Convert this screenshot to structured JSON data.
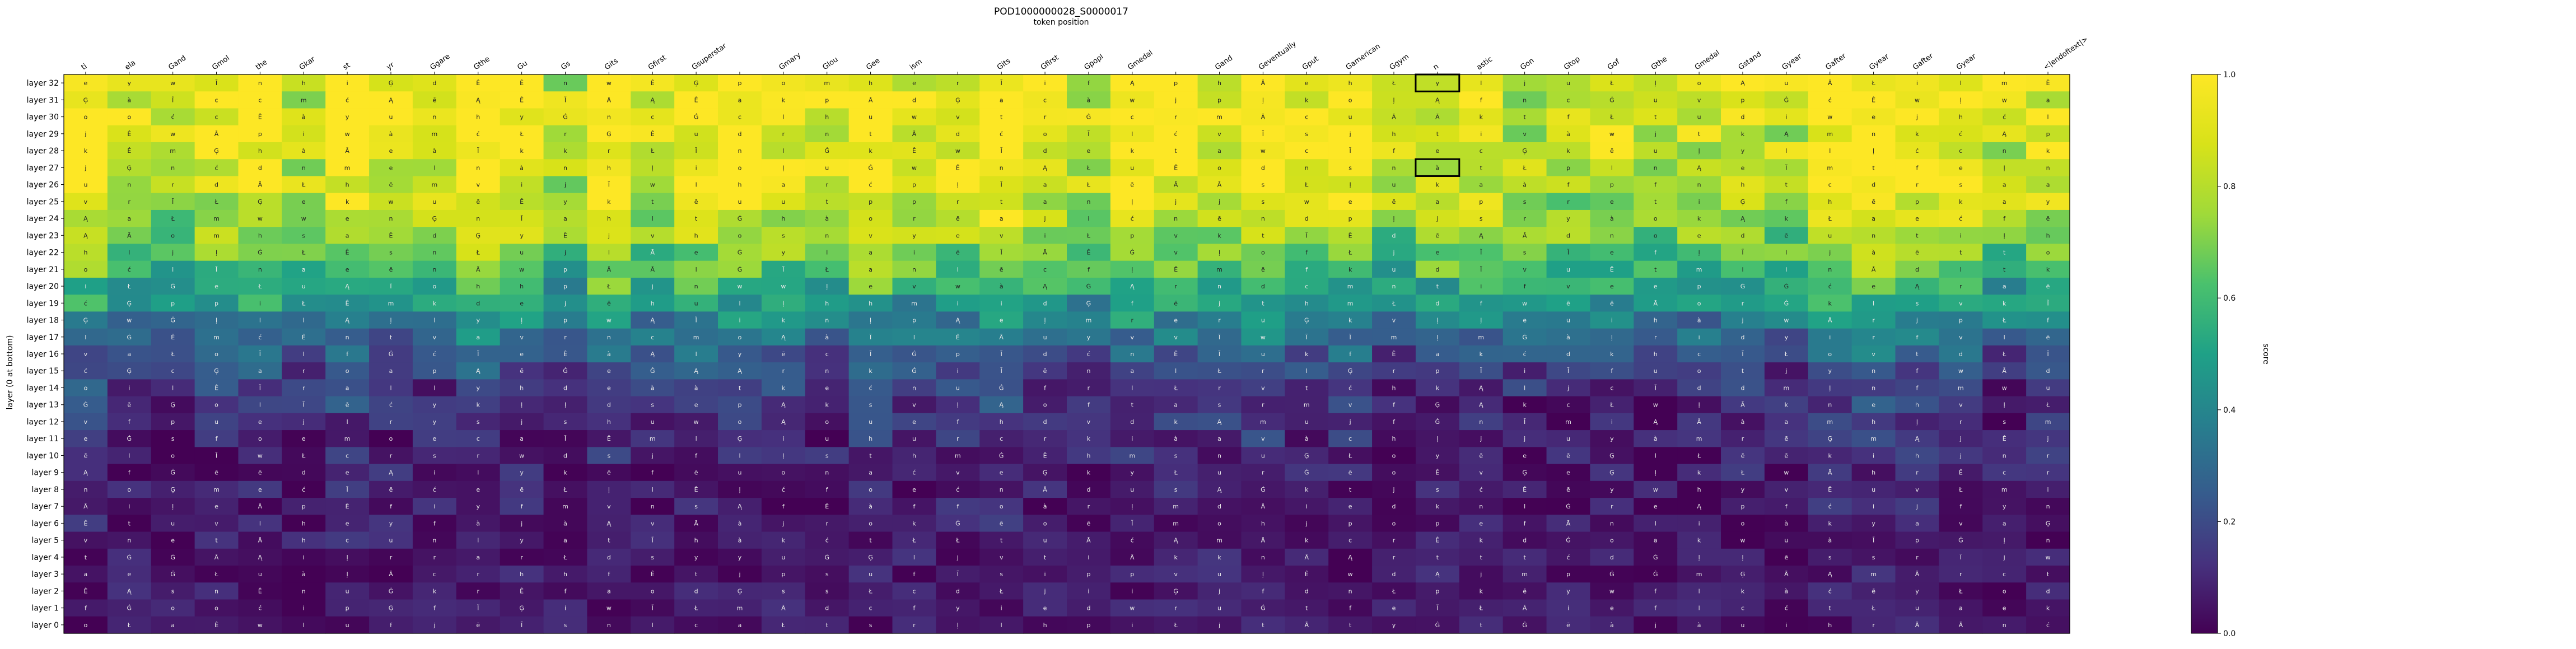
{
  "chart_data": {
    "type": "heatmap",
    "title": "POD1000000028_S0000017",
    "xlabel": "token position",
    "ylabel": "layer (0 at bottom)",
    "colorbar_label": "score",
    "colorbar_ticks": [
      "0.0",
      "0.2",
      "0.4",
      "0.6",
      "0.8",
      "1.0"
    ],
    "vmin": 0.0,
    "vmax": 1.0,
    "colormap": "viridis",
    "x_labels": [
      "ti",
      "ela",
      "Gand",
      "Gmol",
      "the",
      "Gkar",
      "st",
      "yr",
      "Ggare",
      "Gthe",
      "Gu",
      "Gs",
      "Gits",
      "Gfirst",
      "Gsuperstar",
      "",
      "Gmary",
      "Glou",
      "Gee",
      "ism",
      "",
      "Gits",
      "Gfirst",
      "Gpopl",
      "Gmedal",
      "",
      "Gand",
      "Geventually",
      "Gput",
      "Gamerican",
      "Ggym",
      "n",
      "astic",
      "Gon",
      "Gtop",
      "Gof",
      "Gthe",
      "Gmedal",
      "Gstand",
      "Gyear",
      "Gafter",
      "Gyear",
      "Gafter",
      "Gyear",
      "",
      "<|endoftext|>"
    ],
    "y_labels": [
      "layer 32",
      "layer 31",
      "layer 30",
      "layer 29",
      "layer 28",
      "layer 27",
      "layer 26",
      "layer 25",
      "layer 24",
      "layer 23",
      "layer 22",
      "layer 21",
      "layer 20",
      "layer 19",
      "layer 18",
      "layer 17",
      "layer 16",
      "layer 15",
      "layer 14",
      "layer 13",
      "layer 12",
      "layer 11",
      "layer 10",
      "layer 9",
      "layer 8",
      "layer 7",
      "layer 6",
      "layer 5",
      "layer 4",
      "layer 3",
      "layer 2",
      "layer 1",
      "layer 0"
    ],
    "cell_glyphs": [
      "Ą",
      "a",
      "m",
      "t",
      "s",
      "o",
      "e",
      "i",
      "r",
      "l",
      "Ġ",
      "ć",
      "ļ",
      "Ê",
      "à",
      "Ģ",
      "ē",
      "y",
      "v",
      "k",
      "u",
      "p",
      "d",
      "n",
      "c",
      "Ł",
      "w",
      "f",
      "h",
      "j",
      "Ā",
      "Ĩ"
    ],
    "highlighted_cells": [
      {
        "layer": 32,
        "token_index": 31
      },
      {
        "layer": 27,
        "token_index": 31
      }
    ],
    "row_trend": "scores rise from near 0.0 at layer 0 toward 0.8-1.0 at layers 23-32"
  }
}
